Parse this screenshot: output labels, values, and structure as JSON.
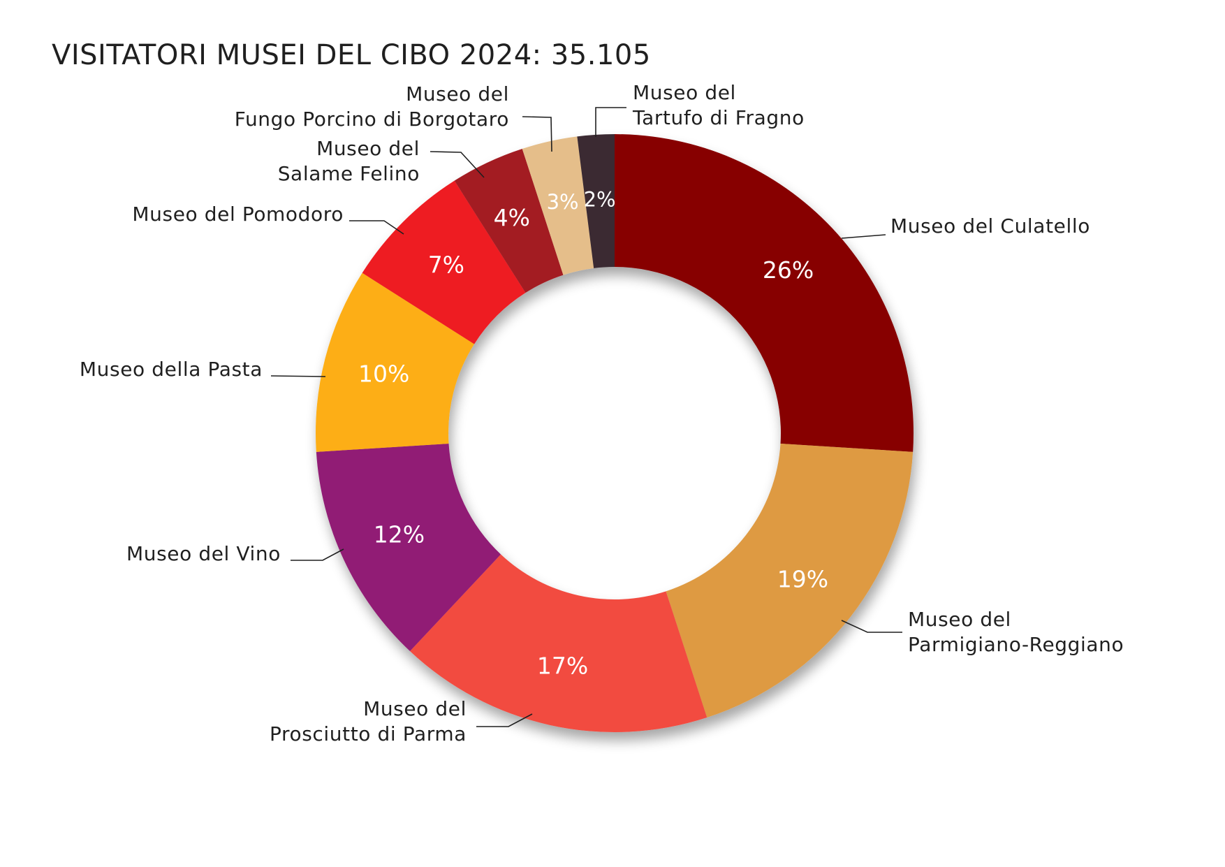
{
  "chart_data": {
    "type": "pie",
    "variant": "donut",
    "title": "VISITATORI MUSEI DEL CIBO 2024: 35.105",
    "legend": "none (callout labels)",
    "slices": [
      {
        "name": [
          "Museo del Culatello"
        ],
        "value": 26,
        "label": "26%",
        "color": "#870006"
      },
      {
        "name": [
          "Museo del",
          "Parmigiano-Reggiano"
        ],
        "value": 19,
        "label": "19%",
        "color": "#DE9A42"
      },
      {
        "name": [
          "Museo del",
          "Prosciutto di Parma"
        ],
        "value": 17,
        "label": "17%",
        "color": "#F24B40"
      },
      {
        "name": [
          "Museo del Vino"
        ],
        "value": 12,
        "label": "12%",
        "color": "#911F75"
      },
      {
        "name": [
          "Museo della Pasta"
        ],
        "value": 10,
        "label": "10%",
        "color": "#FDAE14"
      },
      {
        "name": [
          "Museo del Pomodoro"
        ],
        "value": 7,
        "label": "7%",
        "color": "#EE1C24"
      },
      {
        "name": [
          "Museo del",
          "Salame Felino"
        ],
        "value": 4,
        "label": "4%",
        "color": "#A31A20"
      },
      {
        "name": [
          "Museo del",
          "Fungo Porcino di Borgotaro"
        ],
        "value": 3,
        "label": "3%",
        "color": "#E5BE8A"
      },
      {
        "name": [
          "Museo del",
          "Tartufo di Fragno"
        ],
        "value": 2,
        "label": "2%",
        "color": "#3B2A33"
      }
    ]
  }
}
